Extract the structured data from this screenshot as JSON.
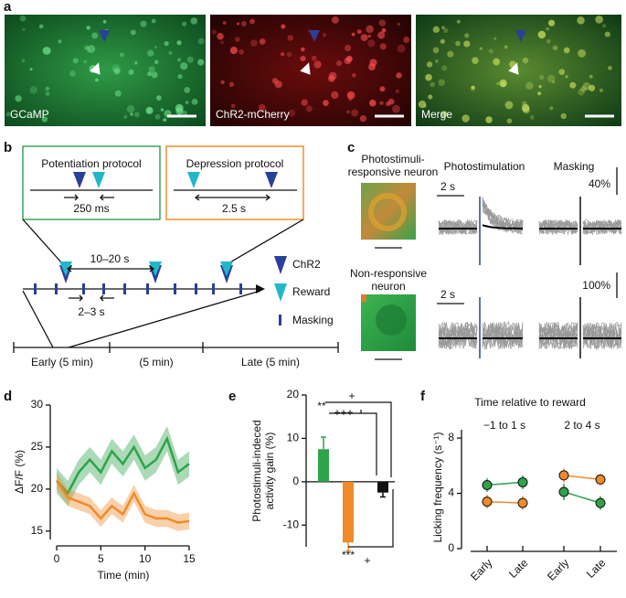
{
  "figure": {
    "a": {
      "label": "a",
      "images": [
        "GCaMP",
        "ChR2-mCherry",
        "Merge"
      ]
    },
    "b": {
      "label": "b",
      "potentiation": {
        "title": "Potentiation protocol",
        "interval": "250 ms"
      },
      "depression": {
        "title": "Depression protocol",
        "interval": "2.5 s"
      },
      "timeline": {
        "trial_interval": "10–20 s",
        "masking_interval": "2–3 s"
      },
      "legend": [
        "ChR2",
        "Reward",
        "Masking"
      ],
      "phases": [
        "Early (5 min)",
        "(5 min)",
        "Late (5 min)"
      ]
    },
    "c": {
      "label": "c",
      "columns": [
        "Photostimulation",
        "Masking"
      ],
      "rows": [
        {
          "name": [
            "Photostimuli-",
            "responsive neuron"
          ],
          "time_scale": "2 s",
          "amplitude_scale": "40%"
        },
        {
          "name": [
            "Non-responsive",
            "neuron"
          ],
          "time_scale": "2 s",
          "amplitude_scale": "100%"
        }
      ]
    }
  },
  "chart_data": [
    {
      "type": "line",
      "panel_label": "d",
      "xlabel": "Time (min)",
      "ylabel": "ΔF/F (%)",
      "x": [
        0,
        1.25,
        2.5,
        3.75,
        5,
        6.25,
        7.5,
        8.75,
        10,
        11.25,
        12.5,
        13.75,
        15
      ],
      "series": [
        {
          "color": "#2ea34a",
          "values": [
            21,
            19.5,
            22,
            23.5,
            22,
            24.5,
            23,
            25,
            22.5,
            23.5,
            26,
            22,
            23
          ],
          "errors": [
            1.5,
            1.5,
            1.5,
            1.5,
            1.5,
            1.5,
            1.5,
            1.5,
            1.5,
            1.5,
            1.5,
            1.5,
            1.5
          ]
        },
        {
          "color": "#f08a2a",
          "values": [
            21,
            19,
            18.5,
            18,
            16.5,
            18,
            17,
            19.5,
            17,
            16.5,
            16.5,
            16,
            16.2
          ],
          "errors": [
            1,
            1,
            1,
            1,
            1,
            1,
            1,
            1,
            1,
            1,
            1,
            1,
            1
          ]
        }
      ],
      "xlim": [
        0,
        15
      ],
      "xticks": [
        0,
        5,
        10,
        15
      ],
      "ylim": [
        14,
        30
      ],
      "yticks": [
        15,
        20,
        25,
        30
      ]
    },
    {
      "type": "bar",
      "panel_label": "e",
      "ylabel": [
        "Photostimuli-indeced",
        "activity gain (%)"
      ],
      "categories": [
        null,
        null,
        null
      ],
      "values": [
        7.5,
        -14,
        -2.5
      ],
      "errors": [
        2.8,
        2,
        1
      ],
      "colors": [
        "#2ea34a",
        "#f08a2a",
        "#111111"
      ],
      "annotations": [
        "**",
        "***",
        "+++",
        "+",
        "+"
      ],
      "ylim": [
        -15,
        20
      ],
      "yticks": [
        -10,
        0,
        10,
        20
      ]
    },
    {
      "type": "slope",
      "panel_label": "f",
      "title": "Time relative to reward",
      "ylabel": "Licking frequency (s⁻¹)",
      "groups": [
        {
          "label": "−1 to 1 s",
          "categories": [
            "Early",
            "Late"
          ],
          "series": [
            {
              "color": "#2ea34a",
              "values": [
                4.6,
                4.8
              ],
              "errors": [
                0.5,
                0.5
              ]
            },
            {
              "color": "#f08a2a",
              "values": [
                3.4,
                3.3
              ],
              "errors": [
                0.5,
                0.5
              ]
            }
          ]
        },
        {
          "label": "2 to 4 s",
          "categories": [
            "Early",
            "Late"
          ],
          "series": [
            {
              "color": "#2ea34a",
              "values": [
                4.1,
                3.3
              ],
              "errors": [
                0.6,
                0.5
              ]
            },
            {
              "color": "#f08a2a",
              "values": [
                5.3,
                5.0
              ],
              "errors": [
                0.5,
                0.4
              ]
            }
          ]
        }
      ],
      "ylim": [
        0,
        8.6
      ],
      "yticks": [
        0,
        4,
        8
      ]
    }
  ]
}
